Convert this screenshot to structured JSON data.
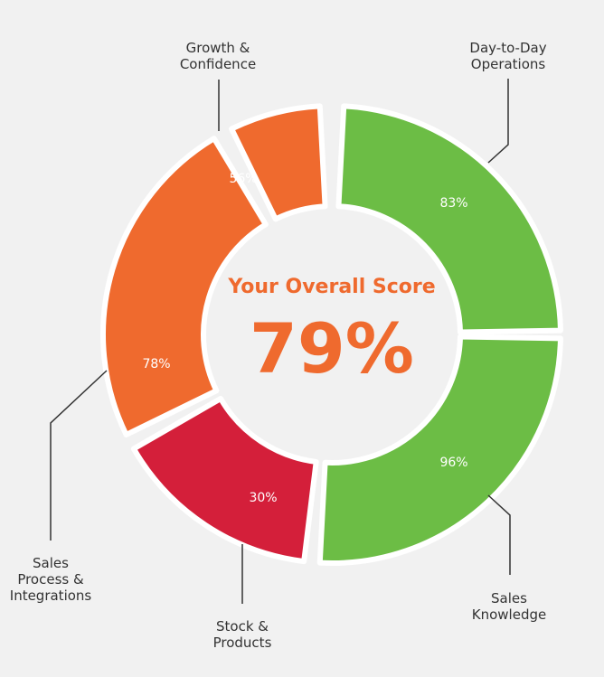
{
  "chart_data": {
    "type": "pie",
    "center_title": "Your Overall Score",
    "center_value": "79%",
    "segments": [
      {
        "label": "Day-to-Day\nOperations",
        "value_label": "83%",
        "color": "#6cbd45"
      },
      {
        "label": "Sales\nKnowledge",
        "value_label": "96%",
        "color": "#6cbd45"
      },
      {
        "label": "Stock &\nProducts",
        "value_label": "30%",
        "color": "#d41f3a"
      },
      {
        "label": "Sales\nProcess &\nIntegrations",
        "value_label": "78%",
        "color": "#ef6a2e"
      },
      {
        "label": "Growth &\nConfidence",
        "value_label": "56%",
        "color": "#ef6a2e"
      }
    ]
  }
}
